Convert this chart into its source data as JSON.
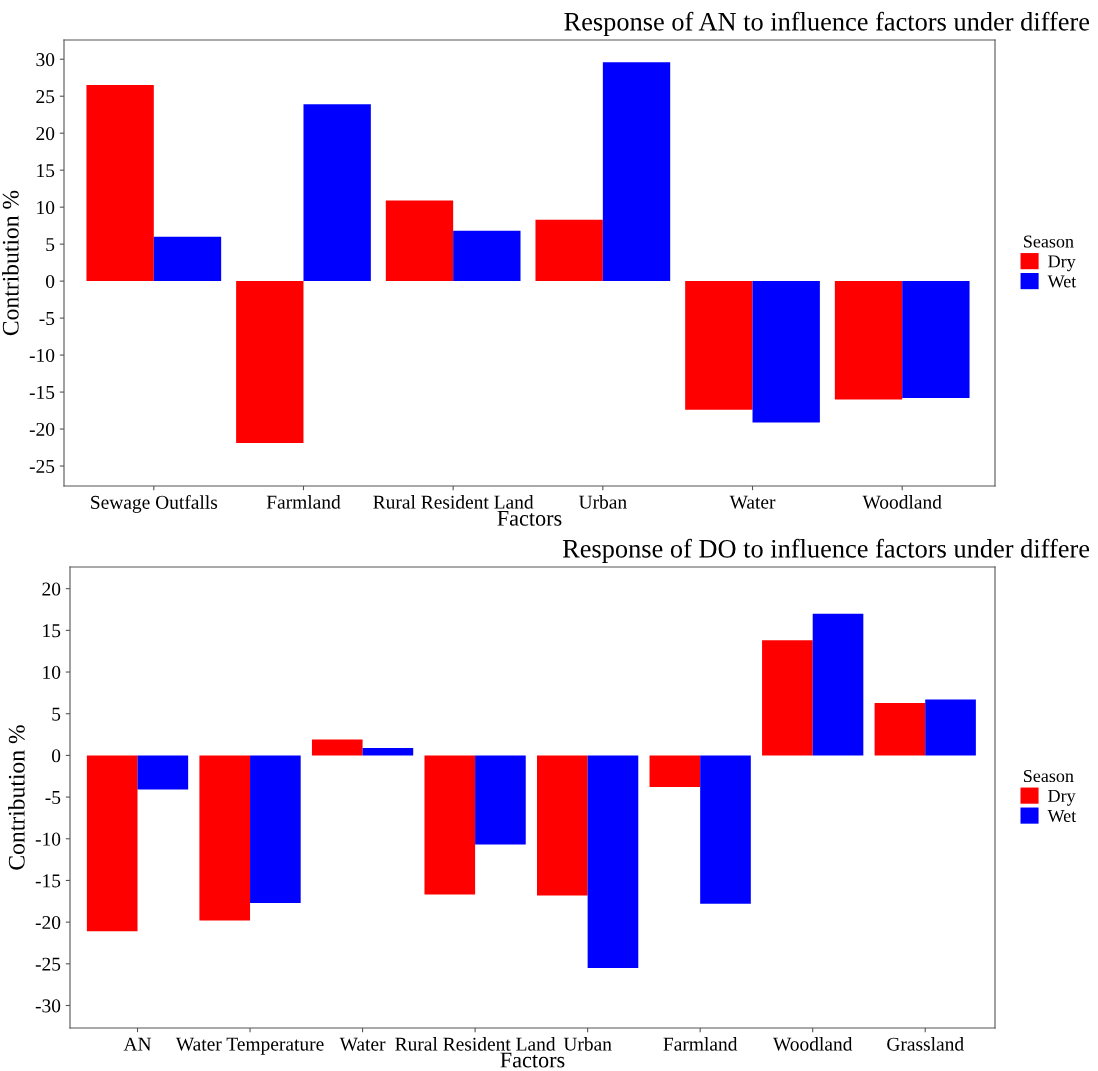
{
  "chart_data": [
    {
      "type": "bar",
      "title": "Response of AN to influence factors under differe",
      "xlabel": "Factors",
      "ylabel": "Contribution %",
      "legend_title": "Season",
      "legend": "right",
      "grid": false,
      "categories": [
        "Sewage Outfalls",
        "Farmland",
        "Rural Resident Land",
        "Urban",
        "Water",
        "Woodland"
      ],
      "series": [
        {
          "name": "Dry",
          "color": "#ff0000",
          "values": [
            26.5,
            -21.9,
            10.9,
            8.3,
            -17.4,
            -16.0
          ]
        },
        {
          "name": "Wet",
          "color": "#0000ff",
          "values": [
            6.0,
            23.9,
            6.8,
            29.6,
            -19.1,
            -15.8
          ]
        }
      ],
      "ylim": [
        -27.7,
        32.6
      ],
      "yticks": [
        -25,
        -20,
        -15,
        -10,
        -5,
        0,
        5,
        10,
        15,
        20,
        25,
        30
      ]
    },
    {
      "type": "bar",
      "title": "Response of DO to influence factors under differe",
      "xlabel": "Factors",
      "ylabel": "Contribution %",
      "legend_title": "Season",
      "legend": "right",
      "grid": false,
      "categories": [
        "AN",
        "Water Temperature",
        "Water",
        "Rural Resident Land",
        "Urban",
        "Farmland",
        "Woodland",
        "Grassland"
      ],
      "series": [
        {
          "name": "Dry",
          "color": "#ff0000",
          "values": [
            -21.1,
            -19.8,
            1.9,
            -16.7,
            -16.8,
            -3.8,
            13.8,
            6.3
          ]
        },
        {
          "name": "Wet",
          "color": "#0000ff",
          "values": [
            -4.1,
            -17.7,
            0.9,
            -10.7,
            -25.5,
            -17.8,
            17.0,
            6.7
          ]
        }
      ],
      "ylim": [
        -32.7,
        22.6
      ],
      "yticks": [
        -30,
        -25,
        -20,
        -15,
        -10,
        -5,
        0,
        5,
        10,
        15,
        20
      ]
    }
  ]
}
